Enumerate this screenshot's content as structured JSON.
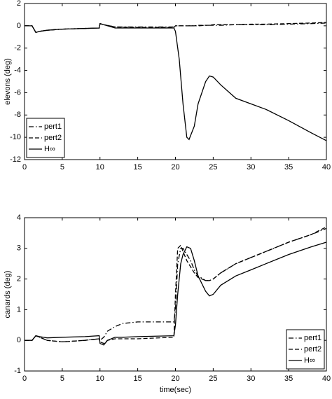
{
  "chart_data": [
    {
      "type": "line",
      "ylabel": "elevons (deg)",
      "legend": "lower left",
      "grid": false,
      "xlim": [
        0,
        40
      ],
      "xticks": [
        0,
        5,
        10,
        15,
        20,
        25,
        30,
        35,
        40
      ],
      "ylim": [
        -12,
        2
      ],
      "yticks": [
        -12,
        -10,
        -8,
        -6,
        -4,
        -2,
        0,
        2
      ],
      "x": [
        0,
        1,
        1.5,
        2,
        3,
        5,
        9.9,
        10,
        10.5,
        12,
        15,
        19.8,
        20,
        20.5,
        21,
        21.5,
        21.8,
        22.5,
        23,
        24,
        24.5,
        25,
        26,
        28,
        30,
        32,
        35,
        38,
        40
      ],
      "series": [
        {
          "name": "pert1",
          "color": "#000000",
          "dash": "dash-dot",
          "values": [
            0,
            0,
            -0.6,
            -0.5,
            -0.4,
            -0.3,
            -0.2,
            0.2,
            0.1,
            -0.1,
            -0.1,
            -0.1,
            0,
            0,
            0,
            0,
            0,
            0,
            0,
            0.05,
            0.05,
            0.05,
            0.05,
            0.1,
            0.1,
            0.1,
            0.15,
            0.2,
            0.25
          ]
        },
        {
          "name": "pert2",
          "color": "#000000",
          "dash": "dashed",
          "values": [
            0,
            0,
            -0.6,
            -0.5,
            -0.4,
            -0.3,
            -0.2,
            0.2,
            0.1,
            -0.1,
            -0.15,
            -0.15,
            0,
            0,
            0,
            0,
            0,
            0,
            0.05,
            0.05,
            0.05,
            0.1,
            0.1,
            0.1,
            0.15,
            0.15,
            0.2,
            0.25,
            0.3
          ]
        },
        {
          "name": "H∞",
          "color": "#000000",
          "dash": "solid",
          "values": [
            0,
            0,
            -0.6,
            -0.5,
            -0.4,
            -0.3,
            -0.2,
            0.2,
            0.1,
            -0.2,
            -0.2,
            -0.2,
            -0.5,
            -3,
            -7,
            -10,
            -10.2,
            -9,
            -7,
            -5,
            -4.5,
            -4.6,
            -5.3,
            -6.5,
            -7,
            -7.5,
            -8.5,
            -9.6,
            -10.3
          ]
        }
      ]
    },
    {
      "type": "line",
      "ylabel": "canards (deg)",
      "xlabel": "time(sec)",
      "legend": "lower right",
      "grid": false,
      "xlim": [
        0,
        40
      ],
      "xticks": [
        0,
        5,
        10,
        15,
        20,
        25,
        30,
        35,
        40
      ],
      "ylim": [
        -1,
        4
      ],
      "yticks": [
        -1,
        0,
        1,
        2,
        3,
        4
      ],
      "x": [
        0,
        1,
        1.5,
        2,
        3,
        5,
        8,
        9.9,
        10,
        10.5,
        11,
        12,
        13,
        15,
        19.8,
        20,
        20.3,
        20.7,
        21,
        21.5,
        22,
        22.5,
        23,
        24,
        24.5,
        25,
        26,
        28,
        30,
        32,
        35,
        38,
        40
      ],
      "series": [
        {
          "name": "pert1",
          "color": "#000000",
          "dash": "dash-dot",
          "values": [
            0,
            0,
            0.15,
            0.1,
            0,
            -0.05,
            0,
            0.05,
            0,
            0.1,
            0.3,
            0.45,
            0.55,
            0.6,
            0.6,
            1,
            2.5,
            3.0,
            3.0,
            2.8,
            2.6,
            2.3,
            2.1,
            1.95,
            1.95,
            2.0,
            2.2,
            2.5,
            2.7,
            2.9,
            3.2,
            3.45,
            3.65
          ]
        },
        {
          "name": "pert2",
          "color": "#000000",
          "dash": "dashed",
          "values": [
            0,
            0,
            0.15,
            0.1,
            0,
            -0.05,
            0,
            0.05,
            -0.05,
            -0.1,
            0,
            0.05,
            0.05,
            0.05,
            0.1,
            1.5,
            3.0,
            3.1,
            2.9,
            2.6,
            2.4,
            2.2,
            2.05,
            1.95,
            1.95,
            2.0,
            2.2,
            2.5,
            2.7,
            2.9,
            3.2,
            3.45,
            3.7
          ]
        },
        {
          "name": "H∞",
          "color": "#000000",
          "dash": "solid",
          "values": [
            0,
            0,
            0.15,
            0.12,
            0.08,
            0.1,
            0.12,
            0.15,
            -0.1,
            -0.15,
            0,
            0.1,
            0.1,
            0.12,
            0.15,
            0.5,
            1.5,
            2.5,
            2.8,
            3.05,
            3.0,
            2.6,
            2.1,
            1.6,
            1.45,
            1.5,
            1.8,
            2.1,
            2.3,
            2.5,
            2.8,
            3.05,
            3.2
          ]
        }
      ]
    }
  ]
}
